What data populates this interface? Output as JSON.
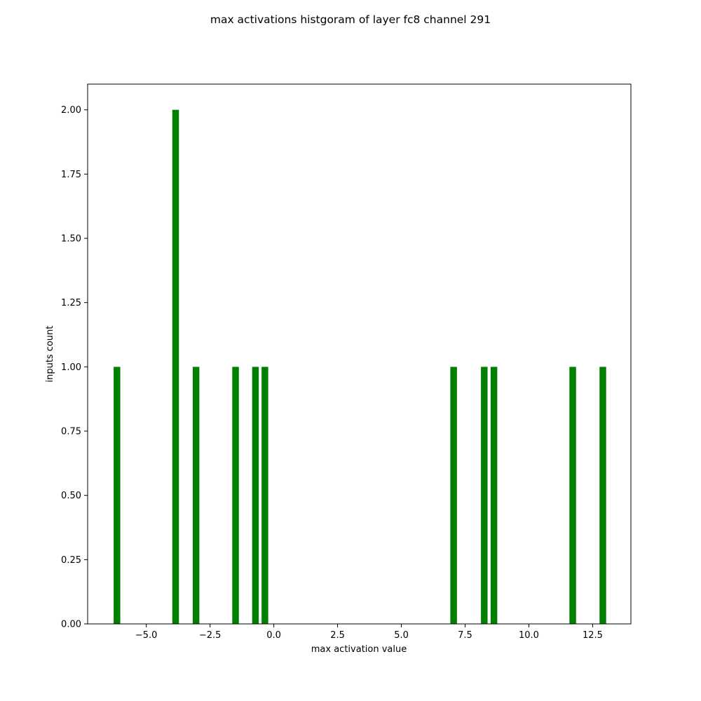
{
  "chart_data": {
    "type": "bar",
    "title": "max activations histgoram of layer fc8 channel 291",
    "xlabel": "max activation value",
    "ylabel": "inputs count",
    "xlim": [
      -7.3,
      14.0
    ],
    "ylim": [
      0.0,
      2.1
    ],
    "xticks": [
      -5.0,
      -2.5,
      0.0,
      2.5,
      5.0,
      7.5,
      10.0,
      12.5
    ],
    "xtick_labels": [
      "−5.0",
      "−2.5",
      "0.0",
      "2.5",
      "5.0",
      "7.5",
      "10.0",
      "12.5"
    ],
    "yticks": [
      0.0,
      0.25,
      0.5,
      0.75,
      1.0,
      1.25,
      1.5,
      1.75,
      2.0
    ],
    "ytick_labels": [
      "0.00",
      "0.25",
      "0.50",
      "0.75",
      "1.00",
      "1.25",
      "1.50",
      "1.75",
      "2.00"
    ],
    "grid": false,
    "bar_color": "#008000",
    "bars": [
      {
        "x": -6.15,
        "count": 1
      },
      {
        "x": -3.85,
        "count": 2
      },
      {
        "x": -3.05,
        "count": 1
      },
      {
        "x": -1.5,
        "count": 1
      },
      {
        "x": -0.72,
        "count": 1
      },
      {
        "x": -0.35,
        "count": 1
      },
      {
        "x": 7.05,
        "count": 1
      },
      {
        "x": 8.25,
        "count": 1
      },
      {
        "x": 8.63,
        "count": 1
      },
      {
        "x": 11.72,
        "count": 1
      },
      {
        "x": 12.9,
        "count": 1
      }
    ],
    "bar_width": 0.26
  }
}
